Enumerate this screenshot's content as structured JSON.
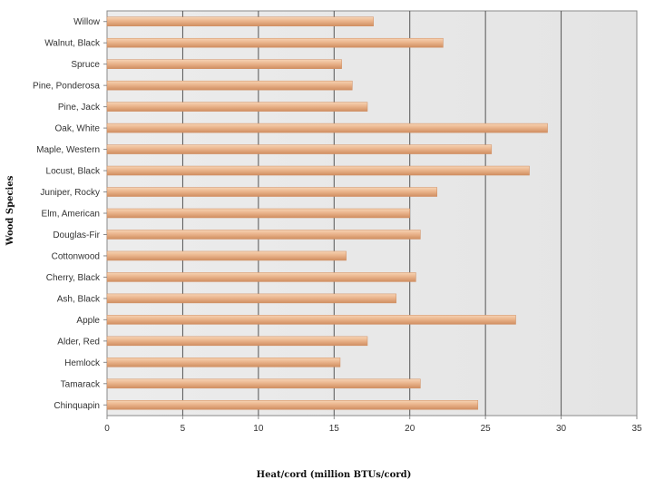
{
  "chart_data": {
    "type": "bar",
    "orientation": "horizontal",
    "title": "",
    "xlabel": "Heat/cord (million BTUs/cord)",
    "ylabel": "Wood Species",
    "xlim": [
      0,
      35
    ],
    "xticks": [
      0,
      5,
      10,
      15,
      20,
      25,
      30,
      35
    ],
    "grid": true,
    "legend": "none",
    "categories": [
      "Willow",
      "Walnut, Black",
      "Spruce",
      "Pine, Ponderosa",
      "Pine, Jack",
      "Oak, White",
      "Maple, Western",
      "Locust, Black",
      "Juniper, Rocky",
      "Elm, American",
      "Douglas-Fir",
      "Cottonwood",
      "Cherry, Black",
      "Ash, Black",
      "Apple",
      "Alder, Red",
      "Hemlock",
      "Tamarack",
      "Chinquapin"
    ],
    "values": [
      17.6,
      22.2,
      15.5,
      16.2,
      17.2,
      29.1,
      25.4,
      27.9,
      21.8,
      20.0,
      20.7,
      15.8,
      20.4,
      19.1,
      27.0,
      17.2,
      15.4,
      20.7,
      24.5
    ],
    "colors": {
      "bar_light": "#f6d3b4",
      "bar_mid": "#eab48c",
      "bar_dark": "#d08e61",
      "plot_bg_left": "#ececec",
      "plot_bg_right": "#e4e4e4",
      "grid": "#555555",
      "frame": "#8a8a8a"
    }
  }
}
